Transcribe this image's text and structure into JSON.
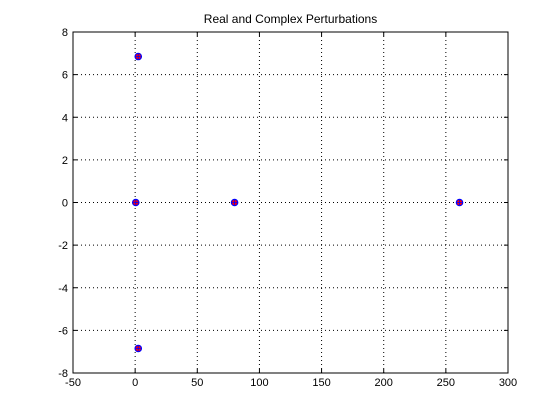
{
  "chart_data": {
    "type": "scatter",
    "title": "Real and Complex Perturbations",
    "xlabel": "",
    "ylabel": "",
    "xlim": [
      -50,
      300
    ],
    "ylim": [
      -8,
      8
    ],
    "xticks": [
      -50,
      0,
      50,
      100,
      150,
      200,
      250,
      300
    ],
    "yticks": [
      -8,
      -6,
      -4,
      -2,
      0,
      2,
      4,
      6,
      8
    ],
    "grid": true,
    "series": [
      {
        "points": [
          {
            "x": 2.5,
            "y": 6.85
          },
          {
            "x": 2.5,
            "y": -6.85
          },
          {
            "x": 0.5,
            "y": 0
          },
          {
            "x": 80,
            "y": 0
          },
          {
            "x": 261,
            "y": 0
          }
        ],
        "colors": {
          "fill": "#ff0000",
          "outline": "#0000ff"
        }
      }
    ]
  }
}
